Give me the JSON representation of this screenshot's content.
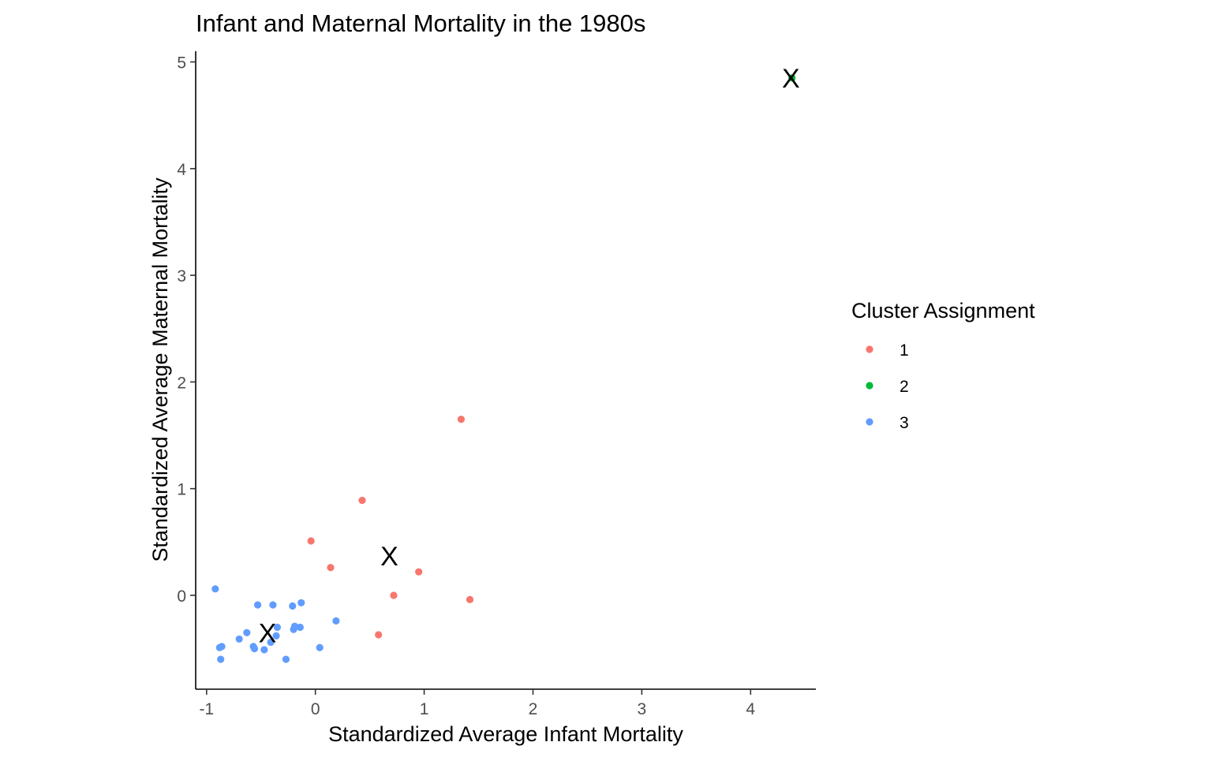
{
  "chart_data": {
    "type": "scatter",
    "title": "Infant and Maternal Mortality in the 1980s",
    "xlabel": "Standardized Average Infant Mortality",
    "ylabel": "Standardized Average Maternal Mortality",
    "xlim": [
      -1.1,
      4.6
    ],
    "ylim": [
      -0.88,
      5.1
    ],
    "xticks": [
      -1,
      0,
      1,
      2,
      3,
      4
    ],
    "xtick_labels": [
      "-1",
      "0",
      "1",
      "2",
      "3",
      "4"
    ],
    "yticks": [
      0,
      1,
      2,
      3,
      4,
      5
    ],
    "ytick_labels": [
      "0",
      "1",
      "2",
      "3",
      "4",
      "5"
    ],
    "grid": false,
    "legend": {
      "title": "Cluster Assignment",
      "position": "right"
    },
    "series": [
      {
        "name": "1",
        "color": "#F8766D",
        "points": [
          [
            1.34,
            1.65
          ],
          [
            0.43,
            0.89
          ],
          [
            -0.04,
            0.51
          ],
          [
            0.14,
            0.26
          ],
          [
            0.95,
            0.22
          ],
          [
            0.72,
            0.0
          ],
          [
            1.42,
            -0.04
          ],
          [
            0.58,
            -0.37
          ]
        ]
      },
      {
        "name": "2",
        "color": "#00BA38",
        "points": [
          [
            4.38,
            4.85
          ]
        ]
      },
      {
        "name": "3",
        "color": "#619CFF",
        "points": [
          [
            -0.92,
            0.06
          ],
          [
            -0.53,
            -0.09
          ],
          [
            -0.39,
            -0.09
          ],
          [
            -0.21,
            -0.1
          ],
          [
            -0.13,
            -0.07
          ],
          [
            -0.35,
            -0.3
          ],
          [
            -0.19,
            -0.29
          ],
          [
            -0.14,
            -0.3
          ],
          [
            0.19,
            -0.24
          ],
          [
            -0.63,
            -0.35
          ],
          [
            -0.7,
            -0.41
          ],
          [
            -0.36,
            -0.38
          ],
          [
            -0.41,
            -0.44
          ],
          [
            -0.2,
            -0.32
          ],
          [
            -0.86,
            -0.48
          ],
          [
            -0.88,
            -0.49
          ],
          [
            -0.57,
            -0.48
          ],
          [
            -0.56,
            -0.5
          ],
          [
            -0.47,
            -0.51
          ],
          [
            0.04,
            -0.49
          ],
          [
            -0.27,
            -0.6
          ],
          [
            -0.87,
            -0.6
          ]
        ]
      }
    ],
    "centroids": {
      "marker": "X",
      "points": [
        [
          0.68,
          0.37
        ],
        [
          4.37,
          4.85
        ],
        [
          -0.44,
          -0.35
        ]
      ]
    }
  }
}
